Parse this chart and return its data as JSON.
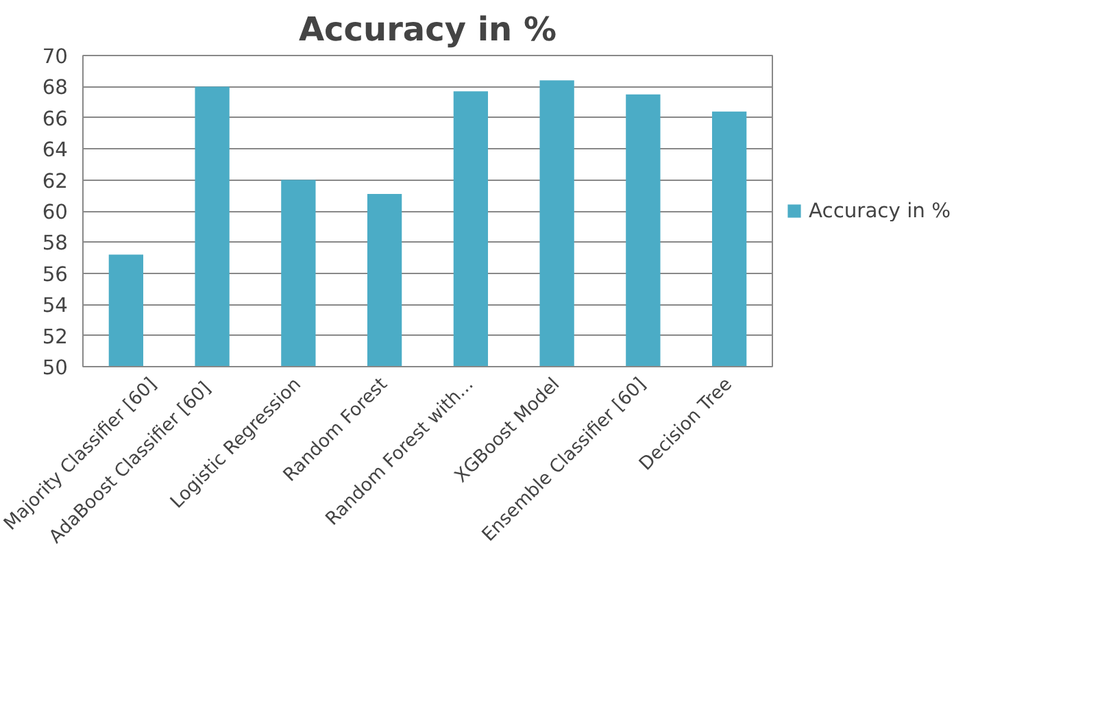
{
  "chart_data": {
    "type": "bar",
    "title": "Accuracy in %",
    "categories": [
      "Majority Classifier [60]",
      "AdaBoost Classifier  [60]",
      "Logistic Regression",
      "Random Forest",
      "Random Forest with...",
      "XGBoost Model",
      "Ensemble Classifier [60]",
      "Decision Tree"
    ],
    "series": [
      {
        "name": "Accuracy in %",
        "color": "#4bacc6",
        "values": [
          57.2,
          68,
          62,
          61.1,
          67.7,
          68.4,
          67.5,
          66.4
        ]
      }
    ],
    "ylim": [
      50,
      70
    ],
    "yticks": [
      50,
      52,
      54,
      56,
      58,
      60,
      62,
      64,
      66,
      68,
      70
    ],
    "grid": "y",
    "legend": "right"
  }
}
